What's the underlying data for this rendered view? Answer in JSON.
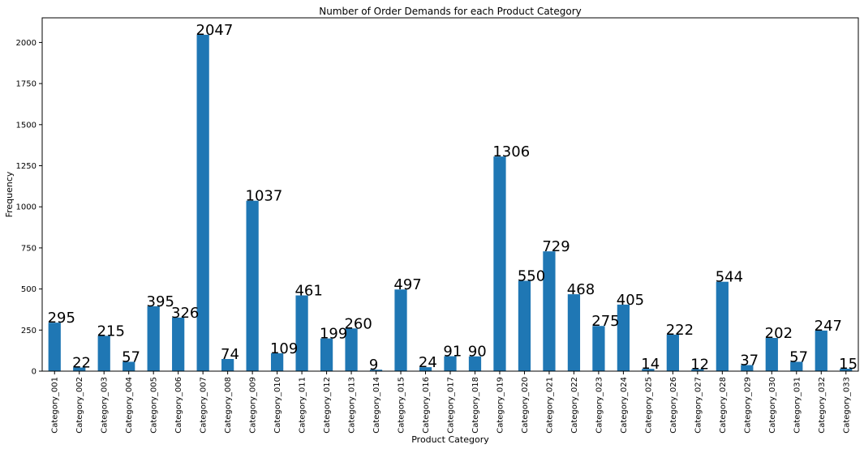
{
  "chart_data": {
    "type": "bar",
    "title": "Number of Order Demands for each Product Category",
    "xlabel": "Product Category",
    "ylabel": "Frequency",
    "ylim": [
      0,
      2150
    ],
    "yticks": [
      0,
      250,
      500,
      750,
      1000,
      1250,
      1500,
      1750,
      2000
    ],
    "grid": false,
    "bar_color": "#1f77b4",
    "categories": [
      "Category_001",
      "Category_002",
      "Category_003",
      "Category_004",
      "Category_005",
      "Category_006",
      "Category_007",
      "Category_008",
      "Category_009",
      "Category_010",
      "Category_011",
      "Category_012",
      "Category_013",
      "Category_014",
      "Category_015",
      "Category_016",
      "Category_017",
      "Category_018",
      "Category_019",
      "Category_020",
      "Category_021",
      "Category_022",
      "Category_023",
      "Category_024",
      "Category_025",
      "Category_026",
      "Category_027",
      "Category_028",
      "Category_029",
      "Category_030",
      "Category_031",
      "Category_032",
      "Category_033"
    ],
    "values": [
      295,
      22,
      215,
      57,
      395,
      326,
      2047,
      74,
      1037,
      109,
      461,
      199,
      260,
      9,
      497,
      24,
      91,
      90,
      1306,
      550,
      729,
      468,
      275,
      405,
      14,
      222,
      12,
      544,
      37,
      202,
      57,
      247,
      15
    ]
  }
}
